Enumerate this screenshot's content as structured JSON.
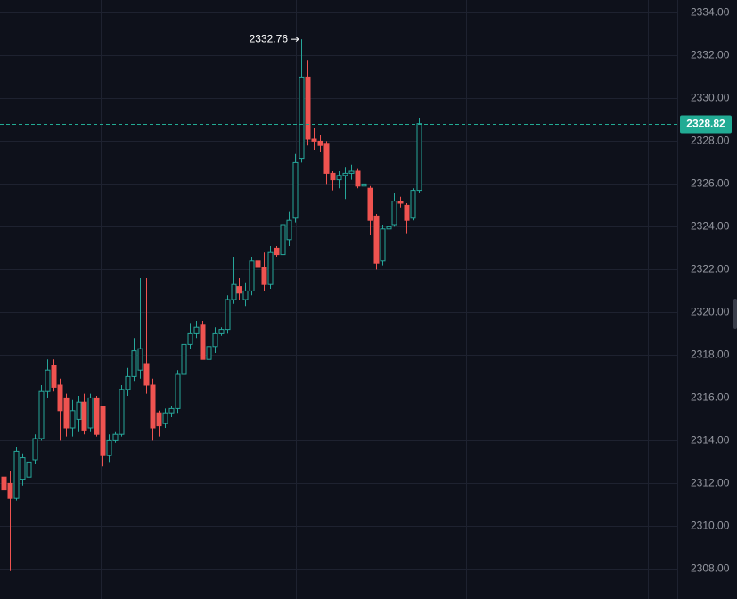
{
  "chart_data": {
    "type": "candlestick",
    "categories": [
      null,
      null,
      null,
      null,
      null,
      null,
      null,
      null,
      null,
      null,
      null,
      null,
      null,
      null,
      null,
      null,
      null,
      null,
      null,
      null,
      null,
      null,
      null,
      null,
      null,
      null,
      null,
      null,
      null,
      null,
      null,
      null,
      null,
      null,
      null,
      null,
      null,
      null,
      null,
      null,
      null,
      null,
      null,
      null,
      null,
      null,
      null,
      null,
      null,
      null,
      null,
      null,
      null,
      null,
      null,
      null,
      null,
      null,
      null,
      null,
      null,
      null,
      null,
      null,
      null,
      null,
      null,
      null
    ],
    "open": [
      2312.3,
      2312.0,
      2311.3,
      2312.2,
      2312.3,
      2313.1,
      2314.1,
      2316.3,
      2317.5,
      2316.6,
      2316.0,
      2314.6,
      2315.0,
      2315.8,
      2314.6,
      2316.0,
      2315.6,
      2313.3,
      2314.0,
      2314.3,
      2316.4,
      2317.0,
      2317.3,
      2317.6,
      2316.6,
      2315.3,
      2314.8,
      2315.3,
      2315.5,
      2317.1,
      2318.5,
      2319.0,
      2319.4,
      2317.8,
      2318.4,
      2319.0,
      2319.2,
      2320.6,
      2321.2,
      2320.6,
      2321.0,
      2322.4,
      2322.1,
      2321.3,
      2323.0,
      2322.7,
      2323.4,
      2324.4,
      2327.2,
      2331.0,
      2328.1,
      2328.0,
      2327.9,
      2326.5,
      2326.2,
      2326.4,
      2326.5,
      2326.6,
      2325.9,
      2325.8,
      2324.5,
      2322.4,
      2323.9,
      2324.1,
      2325.2,
      2325.0,
      2324.4,
      2325.7
    ],
    "high": [
      2312.4,
      2312.6,
      2313.7,
      2313.4,
      2314.0,
      2314.3,
      2316.6,
      2317.8,
      2317.8,
      2316.9,
      2316.2,
      2315.9,
      2316.1,
      2316.2,
      2316.2,
      2316.1,
      2315.6,
      2314.3,
      2314.4,
      2316.6,
      2317.4,
      2318.8,
      2321.6,
      2321.6,
      2316.9,
      2315.4,
      2315.5,
      2315.6,
      2317.3,
      2318.8,
      2319.5,
      2319.6,
      2319.6,
      2318.5,
      2319.3,
      2319.3,
      2320.8,
      2322.6,
      2321.6,
      2321.4,
      2322.6,
      2322.5,
      2322.8,
      2323.1,
      2323.1,
      2324.4,
      2324.7,
      2327.4,
      2332.76,
      2331.8,
      2328.6,
      2328.3,
      2328.0,
      2326.6,
      2326.6,
      2326.8,
      2326.9,
      2326.7,
      2326.1,
      2325.9,
      2324.6,
      2324.1,
      2324.2,
      2325.6,
      2325.4,
      2325.1,
      2325.8,
      2329.1
    ],
    "low": [
      2311.5,
      2307.9,
      2311.2,
      2311.9,
      2312.1,
      2312.9,
      2314.0,
      2316.0,
      2316.3,
      2314.0,
      2314.2,
      2314.2,
      2314.4,
      2314.3,
      2314.4,
      2314.2,
      2312.8,
      2313.0,
      2313.9,
      2314.2,
      2316.1,
      2316.8,
      2316.9,
      2316.2,
      2314.0,
      2314.2,
      2314.6,
      2315.1,
      2315.3,
      2317.0,
      2318.3,
      2318.8,
      2317.8,
      2317.2,
      2318.1,
      2318.9,
      2319.0,
      2320.4,
      2320.6,
      2320.3,
      2320.8,
      2321.9,
      2321.0,
      2321.1,
      2322.6,
      2322.6,
      2323.1,
      2324.2,
      2327.0,
      2327.8,
      2327.6,
      2327.5,
      2326.0,
      2325.7,
      2325.8,
      2325.3,
      2326.2,
      2325.8,
      2325.8,
      2323.6,
      2322.0,
      2322.2,
      2323.7,
      2324.0,
      2324.9,
      2323.7,
      2324.3,
      2325.6
    ],
    "close": [
      2311.7,
      2311.3,
      2313.5,
      2313.2,
      2313.0,
      2314.1,
      2316.3,
      2317.3,
      2316.5,
      2315.4,
      2314.6,
      2315.4,
      2315.8,
      2314.5,
      2316.0,
      2314.3,
      2313.3,
      2314.0,
      2314.3,
      2316.4,
      2317.0,
      2318.2,
      2318.3,
      2316.6,
      2314.6,
      2314.7,
      2315.3,
      2315.5,
      2317.1,
      2318.5,
      2319.0,
      2319.3,
      2317.8,
      2318.4,
      2319.0,
      2319.2,
      2320.6,
      2321.3,
      2320.9,
      2321.0,
      2322.4,
      2322.1,
      2321.3,
      2322.8,
      2322.7,
      2324.1,
      2324.3,
      2327.0,
      2331.0,
      2328.1,
      2328.0,
      2327.8,
      2326.5,
      2326.2,
      2326.4,
      2326.5,
      2326.6,
      2325.9,
      2326.0,
      2324.3,
      2322.3,
      2323.9,
      2324.0,
      2325.2,
      2325.1,
      2324.3,
      2325.7,
      2328.82
    ],
    "up_color": "#26a69a",
    "down_color": "#ef5350",
    "ylim": [
      2306.6,
      2334.6
    ],
    "yticks": [
      {
        "value": 2308,
        "label": "2308.00"
      },
      {
        "value": 2310,
        "label": "2310.00"
      },
      {
        "value": 2312,
        "label": "2312.00"
      },
      {
        "value": 2314,
        "label": "2314.00"
      },
      {
        "value": 2316,
        "label": "2316.00"
      },
      {
        "value": 2318,
        "label": "2318.00"
      },
      {
        "value": 2320,
        "label": "2320.00"
      },
      {
        "value": 2322,
        "label": "2322.00"
      },
      {
        "value": 2324,
        "label": "2324.00"
      },
      {
        "value": 2326,
        "label": "2326.00"
      },
      {
        "value": 2328,
        "label": "2328.00"
      },
      {
        "value": 2330,
        "label": "2330.00"
      },
      {
        "value": 2332,
        "label": "2332.00"
      },
      {
        "value": 2334,
        "label": "2334.00"
      }
    ],
    "grid": true,
    "high_annotation": 2332.76,
    "last_price": 2328.82,
    "last_price_color": "#22ab94"
  }
}
